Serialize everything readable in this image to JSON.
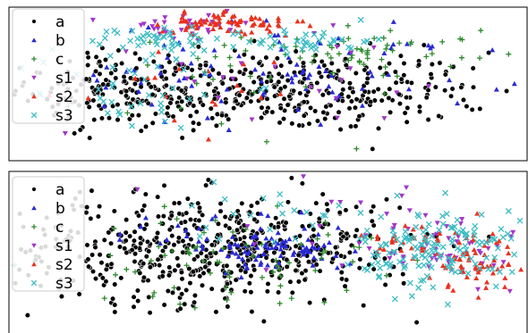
{
  "chart_data": [
    {
      "type": "scatter",
      "panel": "top",
      "title": "",
      "xlabel": "",
      "ylabel": "",
      "xlim": [
        0,
        100
      ],
      "ylim": [
        0,
        100
      ],
      "grid": false,
      "legend_position": "top-left",
      "series": [
        {
          "name": "a",
          "color": "#000000",
          "marker": "circle",
          "clusters": [
            {
              "cx": 50,
              "cy": 45,
              "sx": 22,
              "sy": 13,
              "n": 420
            },
            {
              "cx": 22,
              "cy": 48,
              "sx": 10,
              "sy": 12,
              "n": 90
            }
          ]
        },
        {
          "name": "b",
          "color": "#2929d6",
          "marker": "triangle-up",
          "clusters": [
            {
              "cx": 60,
              "cy": 62,
              "sx": 20,
              "sy": 14,
              "n": 60
            },
            {
              "cx": 40,
              "cy": 55,
              "sx": 15,
              "sy": 18,
              "n": 30
            }
          ]
        },
        {
          "name": "c",
          "color": "#2e8b2e",
          "marker": "plus",
          "clusters": [
            {
              "cx": 70,
              "cy": 72,
              "sx": 12,
              "sy": 5,
              "n": 50
            },
            {
              "cx": 40,
              "cy": 50,
              "sx": 25,
              "sy": 22,
              "n": 40
            }
          ]
        },
        {
          "name": "s1",
          "color": "#a335c9",
          "marker": "triangle-down",
          "clusters": [
            {
              "cx": 33,
              "cy": 86,
              "sx": 7,
              "sy": 5,
              "n": 30
            },
            {
              "cx": 55,
              "cy": 60,
              "sx": 25,
              "sy": 20,
              "n": 30
            }
          ]
        },
        {
          "name": "s2",
          "color": "#e8321e",
          "marker": "triangle-up",
          "clusters": [
            {
              "cx": 38,
              "cy": 90,
              "sx": 4,
              "sy": 3,
              "n": 40
            },
            {
              "cx": 47,
              "cy": 88,
              "sx": 5,
              "sy": 4,
              "n": 35
            },
            {
              "cx": 28,
              "cy": 50,
              "sx": 20,
              "sy": 20,
              "n": 20
            }
          ]
        },
        {
          "name": "s3",
          "color": "#3cbcc4",
          "marker": "x",
          "clusters": [
            {
              "cx": 30,
              "cy": 80,
              "sx": 6,
              "sy": 4,
              "n": 40
            },
            {
              "cx": 58,
              "cy": 78,
              "sx": 6,
              "sy": 4,
              "n": 40
            },
            {
              "cx": 22,
              "cy": 50,
              "sx": 12,
              "sy": 16,
              "n": 50
            }
          ]
        }
      ]
    },
    {
      "type": "scatter",
      "panel": "bottom",
      "title": "",
      "xlabel": "",
      "ylabel": "",
      "xlim": [
        0,
        100
      ],
      "ylim": [
        0,
        100
      ],
      "grid": false,
      "legend_position": "top-left",
      "series": [
        {
          "name": "a",
          "color": "#000000",
          "marker": "circle",
          "clusters": [
            {
              "cx": 35,
              "cy": 52,
              "sx": 18,
              "sy": 17,
              "n": 480
            },
            {
              "cx": 60,
              "cy": 55,
              "sx": 9,
              "sy": 17,
              "n": 90
            }
          ]
        },
        {
          "name": "b",
          "color": "#2929d6",
          "marker": "triangle-up",
          "clusters": [
            {
              "cx": 53,
              "cy": 50,
              "sx": 7,
              "sy": 6,
              "n": 70
            },
            {
              "cx": 40,
              "cy": 60,
              "sx": 10,
              "sy": 8,
              "n": 30
            }
          ]
        },
        {
          "name": "c",
          "color": "#2e8b2e",
          "marker": "plus",
          "clusters": [
            {
              "cx": 43,
              "cy": 45,
              "sx": 14,
              "sy": 14,
              "n": 70
            }
          ]
        },
        {
          "name": "s1",
          "color": "#a335c9",
          "marker": "triangle-down",
          "clusters": [
            {
              "cx": 85,
              "cy": 55,
              "sx": 8,
              "sy": 12,
              "n": 50
            },
            {
              "cx": 55,
              "cy": 70,
              "sx": 15,
              "sy": 20,
              "n": 20
            }
          ]
        },
        {
          "name": "s2",
          "color": "#e8321e",
          "marker": "triangle-up",
          "clusters": [
            {
              "cx": 90,
              "cy": 45,
              "sx": 4,
              "sy": 10,
              "n": 60
            },
            {
              "cx": 76,
              "cy": 55,
              "sx": 4,
              "sy": 8,
              "n": 30
            }
          ]
        },
        {
          "name": "s3",
          "color": "#3cbcc4",
          "marker": "x",
          "clusters": [
            {
              "cx": 84,
              "cy": 52,
              "sx": 8,
              "sy": 12,
              "n": 150
            },
            {
              "cx": 55,
              "cy": 75,
              "sx": 12,
              "sy": 10,
              "n": 25
            }
          ]
        }
      ]
    }
  ]
}
